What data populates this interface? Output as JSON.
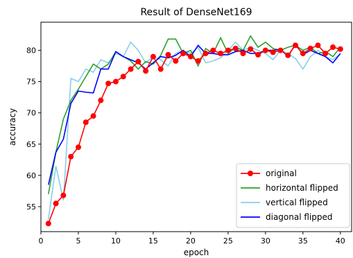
{
  "chart_data": {
    "type": "line",
    "title": "Result of DenseNet169",
    "xlabel": "epoch",
    "ylabel": "accuracy",
    "xlim": [
      0,
      41.5
    ],
    "ylim": [
      51,
      84.5
    ],
    "xticks": [
      0,
      5,
      10,
      15,
      20,
      25,
      30,
      35,
      40
    ],
    "yticks": [
      55,
      60,
      65,
      70,
      75,
      80
    ],
    "legend_position": "lower-right",
    "grid": false,
    "x": [
      1,
      2,
      3,
      4,
      5,
      6,
      7,
      8,
      9,
      10,
      11,
      12,
      13,
      14,
      15,
      16,
      17,
      18,
      19,
      20,
      21,
      22,
      23,
      24,
      25,
      26,
      27,
      28,
      29,
      30,
      31,
      32,
      33,
      34,
      35,
      36,
      37,
      38,
      39,
      40
    ],
    "series": [
      {
        "name": "original",
        "color": "#ff0000",
        "marker": true,
        "values": [
          52.3,
          55.5,
          56.8,
          63.0,
          64.5,
          68.5,
          69.5,
          72.0,
          74.7,
          75.0,
          75.8,
          77.0,
          78.2,
          76.7,
          79.0,
          77.0,
          79.3,
          78.3,
          79.5,
          79.0,
          78.3,
          79.5,
          80.0,
          79.5,
          80.0,
          80.3,
          79.5,
          80.2,
          79.3,
          80.0,
          79.7,
          80.0,
          79.2,
          80.8,
          79.5,
          80.3,
          80.8,
          79.5,
          80.5,
          80.2
        ]
      },
      {
        "name": "horizontal flipped",
        "color": "#2ca02c",
        "marker": false,
        "values": [
          57.0,
          63.7,
          69.0,
          72.0,
          73.8,
          75.8,
          77.8,
          77.0,
          77.8,
          79.8,
          79.0,
          78.3,
          77.0,
          78.2,
          77.8,
          79.2,
          81.8,
          81.8,
          79.5,
          80.0,
          77.5,
          80.3,
          79.5,
          82.0,
          79.5,
          80.5,
          80.0,
          82.3,
          80.5,
          81.3,
          80.3,
          80.0,
          80.5,
          80.8,
          80.0,
          80.5,
          79.5,
          79.8,
          79.0,
          80.5
        ]
      },
      {
        "name": "vertical flipped",
        "color": "#87ceeb",
        "marker": false,
        "values": [
          53.0,
          61.5,
          56.0,
          75.5,
          75.0,
          77.0,
          76.5,
          78.5,
          78.0,
          79.5,
          79.0,
          81.3,
          80.0,
          78.0,
          79.0,
          78.5,
          77.5,
          79.5,
          80.0,
          79.5,
          80.5,
          78.0,
          78.3,
          78.8,
          80.0,
          81.3,
          80.0,
          80.5,
          80.0,
          79.5,
          78.5,
          80.0,
          79.5,
          78.7,
          77.0,
          79.0,
          80.0,
          79.0,
          78.5,
          79.5
        ]
      },
      {
        "name": "diagonal flipped",
        "color": "#0000ff",
        "marker": false,
        "values": [
          58.5,
          63.7,
          65.8,
          71.5,
          73.5,
          73.3,
          73.2,
          77.0,
          77.0,
          79.8,
          79.0,
          78.5,
          78.0,
          77.0,
          78.0,
          79.0,
          78.8,
          79.2,
          80.0,
          79.0,
          80.8,
          79.5,
          79.5,
          79.3,
          79.3,
          79.8,
          80.0,
          79.5,
          79.5,
          80.0,
          80.0,
          80.2,
          79.0,
          81.0,
          79.3,
          80.0,
          79.5,
          79.0,
          78.0,
          79.5
        ]
      }
    ]
  }
}
